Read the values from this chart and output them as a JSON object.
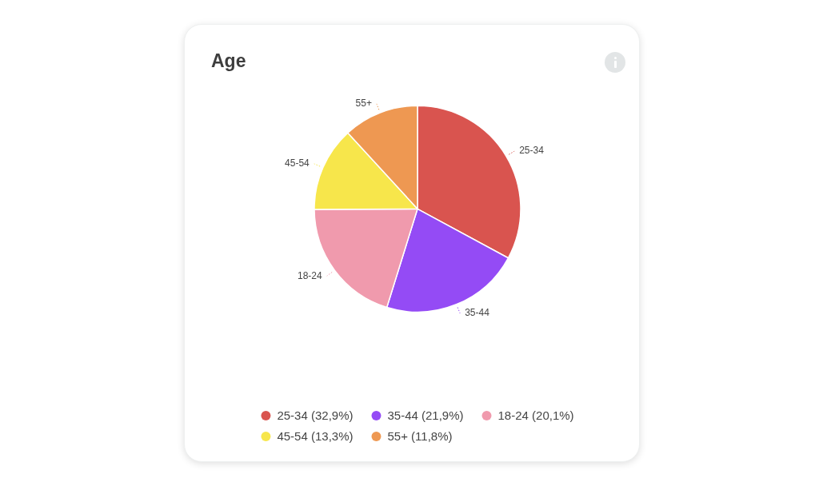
{
  "chart_data": {
    "type": "pie",
    "title": "Age",
    "categories": [
      "25-34",
      "35-44",
      "18-24",
      "45-54",
      "55+"
    ],
    "values": [
      32.9,
      21.9,
      20.1,
      13.3,
      11.8
    ],
    "value_labels": [
      "(32,9%)",
      "(21,9%)",
      "(20,1%)",
      "(13,3%)",
      "(11,8%)"
    ],
    "colors": [
      "#d9544f",
      "#944bf5",
      "#f09aad",
      "#f7e64b",
      "#ee9852"
    ],
    "legend": "bottom"
  }
}
